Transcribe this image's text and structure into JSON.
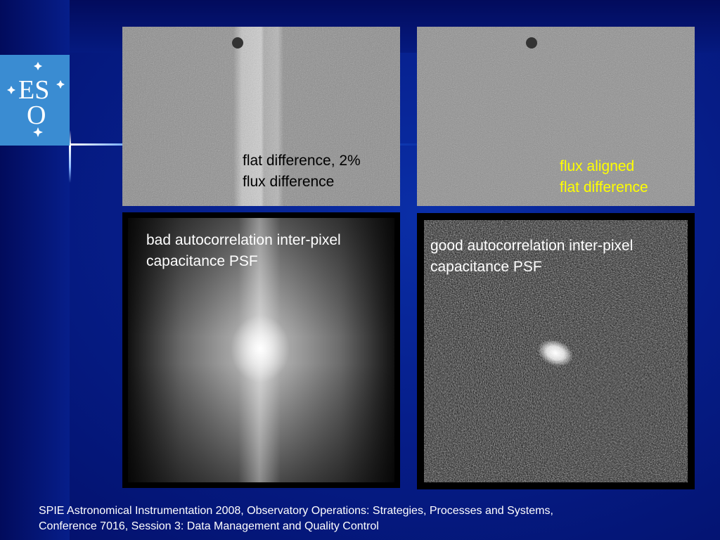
{
  "logo": {
    "text_lines": [
      "ES",
      "O"
    ],
    "accent_color": "#3a8cd2"
  },
  "panels": {
    "top_left": {
      "caption": "flat difference, 2%\nflux difference"
    },
    "top_right": {
      "caption": "flux aligned\nflat difference"
    },
    "bottom_left": {
      "caption": "bad autocorrelation inter-pixel\ncapacitance PSF"
    },
    "bottom_right": {
      "caption": "good autocorrelation inter-pixel\ncapacitance PSF"
    }
  },
  "footer": {
    "text": "SPIE Astronomical Instrumentation 2008, Observatory Operations: Strategies, Processes and Systems,\nConference 7016, Session 3: Data Management and Quality Control"
  },
  "colors": {
    "background": "#061e8a",
    "caption_yellow": "#ffff00"
  }
}
